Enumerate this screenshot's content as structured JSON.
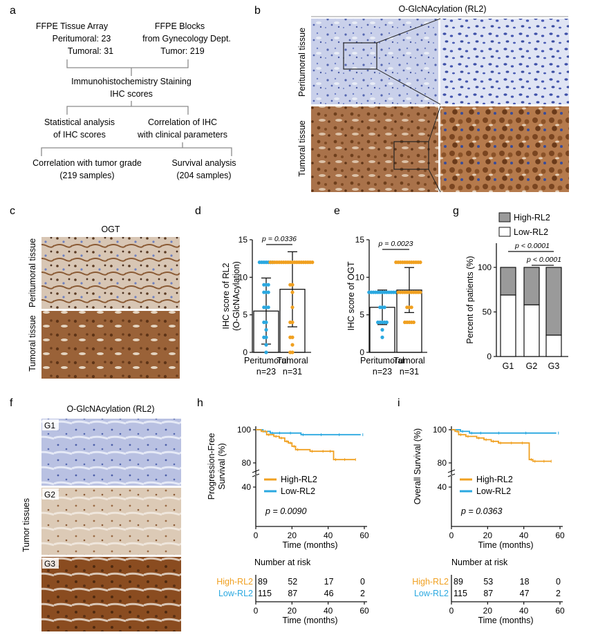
{
  "panels": {
    "a": {
      "letter": "a",
      "box1": [
        "FFPE Tissue Array",
        "Peritumoral: 23",
        "Tumoral: 31"
      ],
      "box2": [
        "FFPE Blocks",
        "from Gynecology Dept.",
        "Tumor: 219"
      ],
      "box3": [
        "Immunohistochemistry Staining",
        "IHC scores"
      ],
      "box4": [
        "Statistical analysis",
        "of IHC scores"
      ],
      "box5": [
        "Correlation of IHC",
        "with clinical parameters"
      ],
      "box6": [
        "Correlation with tumor grade",
        "(219 samples)"
      ],
      "box7": [
        "Survival analysis",
        "(204 samples)"
      ]
    },
    "b": {
      "letter": "b",
      "title": "O-GlcNAcylation (RL2)",
      "row1": "Peritumoral tissue",
      "row2": "Tumoral tissue"
    },
    "c": {
      "letter": "c",
      "title": "OGT",
      "row1": "Peritumoral tissue",
      "row2": "Tumoral tissue"
    },
    "d": {
      "letter": "d"
    },
    "e": {
      "letter": "e"
    },
    "f": {
      "letter": "f",
      "title": "O-GlcNAcylation (RL2)",
      "side": "Tumor tissues",
      "grades": [
        "G1",
        "G2",
        "G3"
      ]
    },
    "g": {
      "letter": "g"
    },
    "h": {
      "letter": "h"
    },
    "i": {
      "letter": "i"
    }
  },
  "colors": {
    "high": "#f0a020",
    "low": "#2aa8e0",
    "ihc_brown": "#7a4a22",
    "ihc_blue": "#6f82c6"
  },
  "chart_data": [
    {
      "id": "d",
      "type": "bar",
      "categories": [
        "Peritumoral",
        "Tumoral"
      ],
      "n_labels": [
        "n=23",
        "n=31"
      ],
      "values": [
        5.5,
        8.4
      ],
      "sd": [
        4.4,
        5.0
      ],
      "ylabel": [
        "IHC score of RL2",
        "(O-GlcNAcylation)"
      ],
      "ylim": [
        0,
        15
      ],
      "yticks": [
        0,
        5,
        10,
        15
      ],
      "pvalue": "p = 0.0336",
      "points": [
        [
          12,
          12,
          12,
          12,
          12,
          12,
          12,
          9,
          9,
          9,
          8,
          8,
          8,
          6,
          6,
          6,
          4,
          4,
          3,
          2,
          2,
          1,
          0
        ],
        [
          12,
          12,
          12,
          12,
          12,
          12,
          12,
          12,
          12,
          12,
          12,
          12,
          12,
          12,
          12,
          12,
          12,
          12,
          12,
          12,
          9,
          9,
          8,
          6,
          4,
          4,
          2,
          2,
          1,
          0,
          0
        ]
      ]
    },
    {
      "id": "e",
      "type": "bar",
      "categories": [
        "Peritumoral",
        "Tumoral"
      ],
      "n_labels": [
        "n=23",
        "n=31"
      ],
      "values": [
        6.0,
        8.3
      ],
      "sd": [
        2.3,
        3.0
      ],
      "ylabel": [
        "IHC score of OGT"
      ],
      "ylim": [
        0,
        15
      ],
      "yticks": [
        0,
        5,
        10,
        15
      ],
      "pvalue": "p = 0.0023",
      "points": [
        [
          8,
          8,
          8,
          8,
          8,
          8,
          8,
          8,
          8,
          8,
          8,
          8,
          8,
          6,
          6,
          6,
          4,
          4,
          4,
          4,
          4,
          3,
          2
        ],
        [
          12,
          12,
          12,
          12,
          12,
          12,
          12,
          12,
          12,
          12,
          12,
          12,
          8,
          8,
          8,
          8,
          8,
          8,
          8,
          8,
          8,
          8,
          8,
          6,
          6,
          6,
          4,
          4,
          4,
          4,
          4
        ]
      ]
    },
    {
      "id": "g",
      "type": "bar",
      "categories": [
        "G1",
        "G2",
        "G3"
      ],
      "series": [
        {
          "name": "High-RL2",
          "values": [
            31,
            42,
            76
          ]
        },
        {
          "name": "Low-RL2",
          "values": [
            69,
            58,
            24
          ]
        }
      ],
      "ylabel": "Percent of patients (%)",
      "ylim": [
        0,
        100
      ],
      "yticks": [
        0,
        50,
        100
      ],
      "pvalues": [
        "p < 0.0001",
        "p < 0.0001"
      ],
      "legend": "top"
    },
    {
      "id": "h",
      "type": "line",
      "ylabel": [
        "Progression-Free",
        "Survival (%)"
      ],
      "xlabel": "Time (months)",
      "xticks": [
        0,
        20,
        40,
        60
      ],
      "yticks_upper": [
        80,
        100
      ],
      "ytick_lower": 40,
      "pvalue": "p = 0.0090",
      "series": [
        {
          "name": "High-RL2",
          "x": [
            0,
            3,
            6,
            10,
            13,
            16,
            18,
            20,
            22,
            30,
            36,
            40,
            43,
            48,
            54
          ],
          "y": [
            100,
            99,
            97,
            96,
            95,
            93,
            92,
            90,
            88,
            87,
            87,
            87,
            82,
            82,
            82
          ]
        },
        {
          "name": "Low-RL2",
          "x": [
            0,
            4,
            8,
            12,
            18,
            25,
            35,
            45,
            58
          ],
          "y": [
            100,
            99,
            98,
            98,
            98,
            97,
            97,
            97,
            97
          ]
        }
      ],
      "risk_title": "Number at risk",
      "risk_x": [
        "0",
        "20",
        "40",
        "60"
      ],
      "risk_rows": [
        {
          "name": "High-RL2",
          "values": [
            "89",
            "52",
            "17",
            "0"
          ]
        },
        {
          "name": "Low-RL2",
          "values": [
            "115",
            "87",
            "46",
            "2"
          ]
        }
      ],
      "risk_xlabel": "Time (months)"
    },
    {
      "id": "i",
      "type": "line",
      "ylabel": [
        "Overall Survival (%)"
      ],
      "xlabel": "Time (months)",
      "xticks": [
        0,
        20,
        40,
        60
      ],
      "yticks_upper": [
        80,
        100
      ],
      "ytick_lower": 40,
      "pvalue": "p = 0.0363",
      "series": [
        {
          "name": "High-RL2",
          "x": [
            0,
            2,
            4,
            8,
            14,
            18,
            22,
            26,
            32,
            38,
            43,
            45,
            50,
            54
          ],
          "y": [
            100,
            99,
            97,
            96,
            95,
            94,
            93,
            92,
            92,
            92,
            82,
            81,
            81,
            81
          ]
        },
        {
          "name": "Low-RL2",
          "x": [
            0,
            5,
            10,
            15,
            25,
            40,
            58
          ],
          "y": [
            100,
            99,
            98,
            98,
            98,
            98,
            98
          ]
        }
      ],
      "risk_title": "Number at risk",
      "risk_x": [
        "0",
        "20",
        "40",
        "60"
      ],
      "risk_rows": [
        {
          "name": "High-RL2",
          "values": [
            "89",
            "53",
            "18",
            "0"
          ]
        },
        {
          "name": "Low-RL2",
          "values": [
            "115",
            "87",
            "47",
            "2"
          ]
        }
      ],
      "risk_xlabel": "Time (months)"
    }
  ]
}
